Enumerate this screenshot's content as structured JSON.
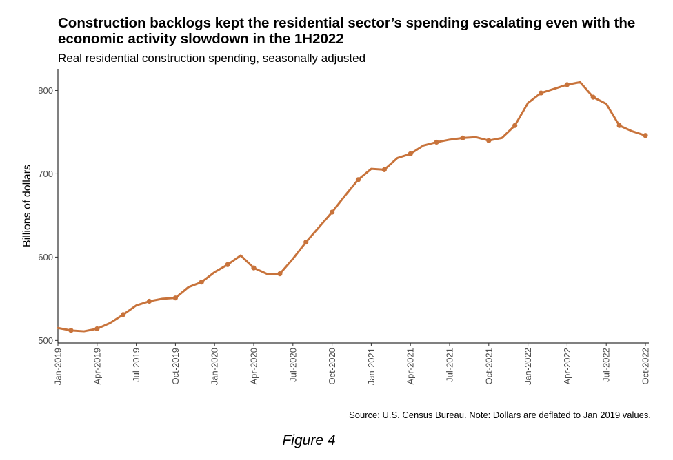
{
  "chart_data": {
    "type": "line",
    "title": "Construction backlogs kept the residential sector’s spending escalating even with the economic activity slowdown in the 1H2022",
    "subtitle": "Real residential construction spending, seasonally adjusted",
    "ylabel": "Billions of dollars",
    "xlabel": "",
    "caption": "Source: U.S. Census Bureau. Note: Dollars are deflated to Jan 2019 values.",
    "ylim": [
      497,
      826
    ],
    "yticks": [
      500,
      600,
      700,
      800
    ],
    "x": [
      "Jan-2019",
      "Feb-2019",
      "Mar-2019",
      "Apr-2019",
      "May-2019",
      "Jun-2019",
      "Jul-2019",
      "Aug-2019",
      "Sep-2019",
      "Oct-2019",
      "Nov-2019",
      "Dec-2019",
      "Jan-2020",
      "Feb-2020",
      "Mar-2020",
      "Apr-2020",
      "May-2020",
      "Jun-2020",
      "Jul-2020",
      "Aug-2020",
      "Sep-2020",
      "Oct-2020",
      "Nov-2020",
      "Dec-2020",
      "Jan-2021",
      "Feb-2021",
      "Mar-2021",
      "Apr-2021",
      "May-2021",
      "Jun-2021",
      "Jul-2021",
      "Aug-2021",
      "Sep-2021",
      "Oct-2021",
      "Nov-2021",
      "Dec-2021",
      "Jan-2022",
      "Feb-2022",
      "Mar-2022",
      "Apr-2022",
      "May-2022",
      "Jun-2022",
      "Jul-2022",
      "Aug-2022",
      "Sep-2022",
      "Oct-2022"
    ],
    "xtick_labels": [
      "Jan-2019",
      "Apr-2019",
      "Jul-2019",
      "Oct-2019",
      "Jan-2020",
      "Apr-2020",
      "Jul-2020",
      "Oct-2020",
      "Jan-2021",
      "Apr-2021",
      "Jul-2021",
      "Oct-2021",
      "Jan-2022",
      "Apr-2022",
      "Jul-2022",
      "Oct-2022"
    ],
    "values": [
      515,
      512,
      511,
      514,
      521,
      531,
      542,
      547,
      550,
      551,
      564,
      570,
      582,
      591,
      602,
      587,
      580,
      580,
      598,
      618,
      636,
      654,
      674,
      693,
      706,
      705,
      719,
      724,
      734,
      738,
      741,
      743,
      744,
      740,
      743,
      758,
      785,
      797,
      802,
      807,
      810,
      792,
      784,
      758,
      751,
      746
    ],
    "markers": [
      false,
      true,
      false,
      true,
      false,
      true,
      false,
      true,
      false,
      true,
      false,
      true,
      false,
      true,
      false,
      true,
      false,
      true,
      false,
      true,
      false,
      true,
      false,
      true,
      false,
      true,
      false,
      true,
      false,
      true,
      false,
      true,
      false,
      true,
      false,
      true,
      false,
      true,
      false,
      true,
      false,
      true,
      false,
      true,
      false,
      true
    ],
    "line_color": "#c8733b",
    "grid": false
  },
  "figure_label": "Figure 4"
}
